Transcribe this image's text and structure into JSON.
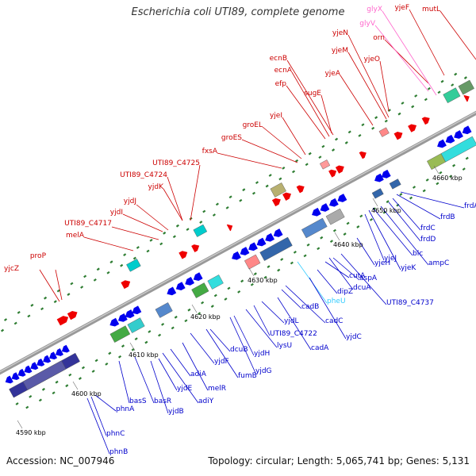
{
  "title": "Escherichia coli UTI89, complete genome",
  "accession": "Accession: NC_007946",
  "summary": "Topology: circular; Length: 5,065,741 bp; Genes: 5,131",
  "colors": {
    "backbone": "#888888",
    "forward_label": "#cc0000",
    "reverse_label": "#0000cc",
    "trna_label": "#ff66cc",
    "rrna_label": "#33ccff",
    "tick": "#2e7d32"
  },
  "position_labels": [
    "4590 kbp",
    "4600 kbp",
    "4610 kbp",
    "4620 kbp",
    "4630 kbp",
    "4640 kbp",
    "4650 kbp",
    "4660 kbp"
  ],
  "genes_upper": [
    {
      "name": "yjcZ",
      "type": "cds"
    },
    {
      "name": "proP",
      "type": "cds"
    },
    {
      "name": "melA",
      "type": "cds"
    },
    {
      "name": "UTI89_C4717",
      "type": "cds"
    },
    {
      "name": "yjdI",
      "type": "cds"
    },
    {
      "name": "yjdJ",
      "type": "cds"
    },
    {
      "name": "yjdK",
      "type": "cds"
    },
    {
      "name": "UTI89_C4724",
      "type": "cds"
    },
    {
      "name": "UTI89_C4725",
      "type": "cds"
    },
    {
      "name": "fxsA",
      "type": "cds"
    },
    {
      "name": "groES",
      "type": "cds"
    },
    {
      "name": "groEL",
      "type": "cds"
    },
    {
      "name": "yjeI",
      "type": "cds"
    },
    {
      "name": "efp",
      "type": "cds"
    },
    {
      "name": "ecnA",
      "type": "cds"
    },
    {
      "name": "ecnB",
      "type": "cds"
    },
    {
      "name": "sugE",
      "type": "cds"
    },
    {
      "name": "yjeA",
      "type": "cds"
    },
    {
      "name": "yjeM",
      "type": "cds"
    },
    {
      "name": "yjeN",
      "type": "cds"
    },
    {
      "name": "yjeO",
      "type": "cds"
    },
    {
      "name": "orn",
      "type": "cds"
    },
    {
      "name": "glyV",
      "type": "trna"
    },
    {
      "name": "glyX",
      "type": "trna"
    },
    {
      "name": "yjeF",
      "type": "cds"
    },
    {
      "name": "mutL",
      "type": "cds"
    }
  ],
  "genes_lower": [
    {
      "name": "phnB",
      "type": "cds"
    },
    {
      "name": "phnC",
      "type": "cds"
    },
    {
      "name": "phnA",
      "type": "cds"
    },
    {
      "name": "basS",
      "type": "cds"
    },
    {
      "name": "basR",
      "type": "cds"
    },
    {
      "name": "yjdB",
      "type": "cds"
    },
    {
      "name": "yjdE",
      "type": "cds"
    },
    {
      "name": "adiY",
      "type": "cds"
    },
    {
      "name": "adiA",
      "type": "cds"
    },
    {
      "name": "melR",
      "type": "cds"
    },
    {
      "name": "yjdF",
      "type": "cds"
    },
    {
      "name": "fumB",
      "type": "cds"
    },
    {
      "name": "dcuB",
      "type": "cds"
    },
    {
      "name": "yjdG",
      "type": "cds"
    },
    {
      "name": "yjdH",
      "type": "cds"
    },
    {
      "name": "lysU",
      "type": "cds"
    },
    {
      "name": "UTI89_C4722",
      "type": "cds"
    },
    {
      "name": "yjdL",
      "type": "cds"
    },
    {
      "name": "cadA",
      "type": "cds"
    },
    {
      "name": "cadB",
      "type": "cds"
    },
    {
      "name": "cadC",
      "type": "cds"
    },
    {
      "name": "pheU",
      "type": "trna"
    },
    {
      "name": "yjdC",
      "type": "cds"
    },
    {
      "name": "dipZ",
      "type": "cds"
    },
    {
      "name": "cutA",
      "type": "cds"
    },
    {
      "name": "dcuA",
      "type": "cds"
    },
    {
      "name": "aspA",
      "type": "cds"
    },
    {
      "name": "UTI89_C4737",
      "type": "cds"
    },
    {
      "name": "yjeH",
      "type": "cds"
    },
    {
      "name": "yjeJ",
      "type": "cds"
    },
    {
      "name": "yjeK",
      "type": "cds"
    },
    {
      "name": "blc",
      "type": "cds"
    },
    {
      "name": "ampC",
      "type": "cds"
    },
    {
      "name": "frdD",
      "type": "cds"
    },
    {
      "name": "frdC",
      "type": "cds"
    },
    {
      "name": "frdB",
      "type": "cds"
    },
    {
      "name": "frdA",
      "type": "cds"
    }
  ]
}
